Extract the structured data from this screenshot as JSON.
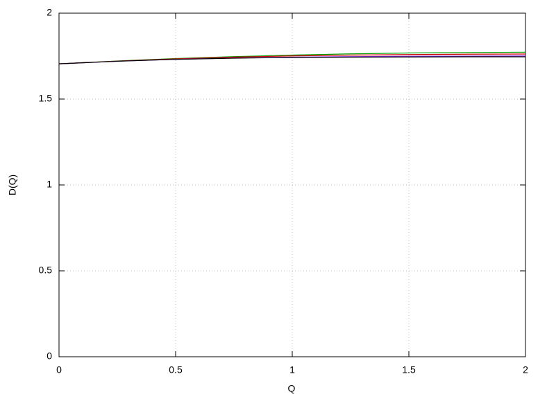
{
  "chart_data": {
    "type": "line",
    "x_label": "Q",
    "y_label": "D(Q)",
    "x": [
      0,
      0.25,
      0.5,
      0.75,
      1,
      1.25,
      1.5,
      1.75,
      2
    ],
    "series": [
      {
        "color": "#009e00",
        "values": [
          1.705,
          1.722,
          1.736,
          1.747,
          1.756,
          1.763,
          1.768,
          1.771,
          1.773
        ]
      },
      {
        "color": "#cc0000",
        "values": [
          1.705,
          1.721,
          1.734,
          1.744,
          1.751,
          1.756,
          1.759,
          1.761,
          1.762
        ]
      },
      {
        "color": "#8a2be2",
        "values": [
          1.705,
          1.72,
          1.731,
          1.739,
          1.744,
          1.747,
          1.749,
          1.75,
          1.751
        ]
      },
      {
        "color": "#000000",
        "values": [
          1.705,
          1.72,
          1.731,
          1.738,
          1.742,
          1.744,
          1.745,
          1.746,
          1.746
        ]
      }
    ],
    "xlim": [
      0,
      2
    ],
    "ylim": [
      0,
      2
    ],
    "xticks": [
      0,
      0.5,
      1,
      1.5,
      2
    ],
    "yticks": [
      0,
      0.5,
      1,
      1.5,
      2
    ],
    "grid": true
  }
}
